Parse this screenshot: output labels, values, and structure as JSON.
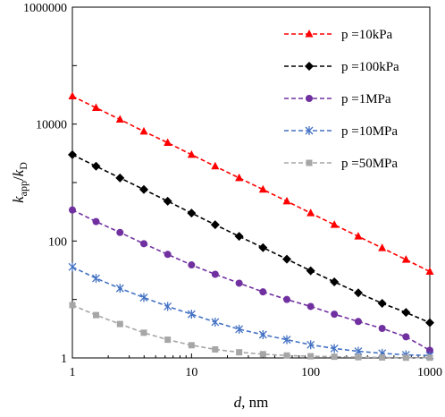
{
  "chart_data": {
    "type": "line",
    "xscale": "log",
    "yscale": "log",
    "xlim": [
      1,
      1000
    ],
    "ylim": [
      1,
      1000000
    ],
    "xticks": [
      "1",
      "10",
      "100",
      "1000"
    ],
    "yticks": [
      "1",
      "100",
      "10000",
      "1000000"
    ],
    "xlabel_var": "d",
    "xlabel_unit": ", nm",
    "ylabel_num": "k",
    "ylabel_num_sub": "app",
    "ylabel_slash": "/",
    "ylabel_den": "k",
    "ylabel_den_sub": "D",
    "grid": false,
    "legend_position": "top-right",
    "x": [
      1,
      1.58,
      2.51,
      3.98,
      6.31,
      10,
      15.8,
      25.1,
      39.8,
      63.1,
      100,
      158,
      251,
      398,
      631,
      1000
    ],
    "series": [
      {
        "name": "p =10kPa",
        "color": "#ff0000",
        "marker": "triangle",
        "values": [
          30000,
          19000,
          12000,
          7500,
          4800,
          3000,
          1900,
          1200,
          760,
          480,
          300,
          190,
          120,
          76,
          48,
          30
        ]
      },
      {
        "name": "p =100kPa",
        "color": "#000000",
        "marker": "diamond",
        "values": [
          3000,
          1900,
          1200,
          760,
          480,
          300,
          190,
          120,
          77,
          49,
          31,
          20,
          13,
          8.6,
          6,
          4
        ]
      },
      {
        "name": "p =1MPa",
        "color": "#7030a0",
        "marker": "circle",
        "values": [
          340,
          215,
          140,
          90,
          59,
          39,
          27,
          19,
          13.5,
          10,
          7.6,
          5.6,
          4.2,
          3.2,
          2.3,
          1.35
        ]
      },
      {
        "name": "p =10MPa",
        "color": "#4472c4",
        "marker": "asterisk",
        "values": [
          36,
          23,
          15.5,
          10.8,
          7.6,
          5.6,
          4.1,
          3.1,
          2.5,
          2.05,
          1.68,
          1.45,
          1.3,
          1.2,
          1.13,
          1.1
        ]
      },
      {
        "name": "p =50MPa",
        "color": "#a6a6a6",
        "marker": "square",
        "values": [
          8,
          5.4,
          3.8,
          2.7,
          2.05,
          1.65,
          1.4,
          1.25,
          1.16,
          1.1,
          1.07,
          1.05,
          1.03,
          1.02,
          1.01,
          1.01
        ]
      }
    ]
  }
}
